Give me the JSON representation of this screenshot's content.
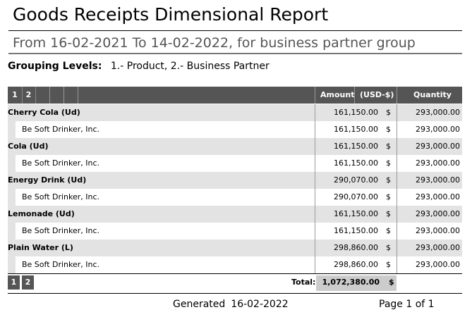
{
  "report": {
    "title": "Goods Receipts Dimensional Report",
    "subtitle": "From 16-02-2021 To 14-02-2022, for business partner group",
    "grouping_label": "Grouping Levels:",
    "grouping_value": "1.- Product, 2.- Business Partner"
  },
  "table": {
    "levels": [
      "1",
      "2"
    ],
    "col_amount": "Amount",
    "col_currency": "(USD-$)",
    "col_quantity": "Quantity",
    "rows": [
      {
        "level": 1,
        "name": "Cherry Cola (Ud)",
        "amount": "161,150.00",
        "currency": "$",
        "quantity": "293,000.00"
      },
      {
        "level": 2,
        "name": "Be Soft Drinker, Inc.",
        "amount": "161,150.00",
        "currency": "$",
        "quantity": "293,000.00"
      },
      {
        "level": 1,
        "name": "Cola (Ud)",
        "amount": "161,150.00",
        "currency": "$",
        "quantity": "293,000.00"
      },
      {
        "level": 2,
        "name": "Be Soft Drinker, Inc.",
        "amount": "161,150.00",
        "currency": "$",
        "quantity": "293,000.00"
      },
      {
        "level": 1,
        "name": "Energy Drink (Ud)",
        "amount": "290,070.00",
        "currency": "$",
        "quantity": "293,000.00"
      },
      {
        "level": 2,
        "name": "Be Soft Drinker, Inc.",
        "amount": "290,070.00",
        "currency": "$",
        "quantity": "293,000.00"
      },
      {
        "level": 1,
        "name": "Lemonade (Ud)",
        "amount": "161,150.00",
        "currency": "$",
        "quantity": "293,000.00"
      },
      {
        "level": 2,
        "name": "Be Soft Drinker, Inc.",
        "amount": "161,150.00",
        "currency": "$",
        "quantity": "293,000.00"
      },
      {
        "level": 1,
        "name": "Plain Water (L)",
        "amount": "298,860.00",
        "currency": "$",
        "quantity": "293,000.00"
      },
      {
        "level": 2,
        "name": "Be Soft Drinker, Inc.",
        "amount": "298,860.00",
        "currency": "$",
        "quantity": "293,000.00"
      }
    ],
    "total_label": "Total:",
    "total_amount": "1,072,380.00",
    "total_currency": "$"
  },
  "footer": {
    "generated_label": "Generated",
    "generated_date": "16-02-2022",
    "page": "Page 1 of 1"
  }
}
